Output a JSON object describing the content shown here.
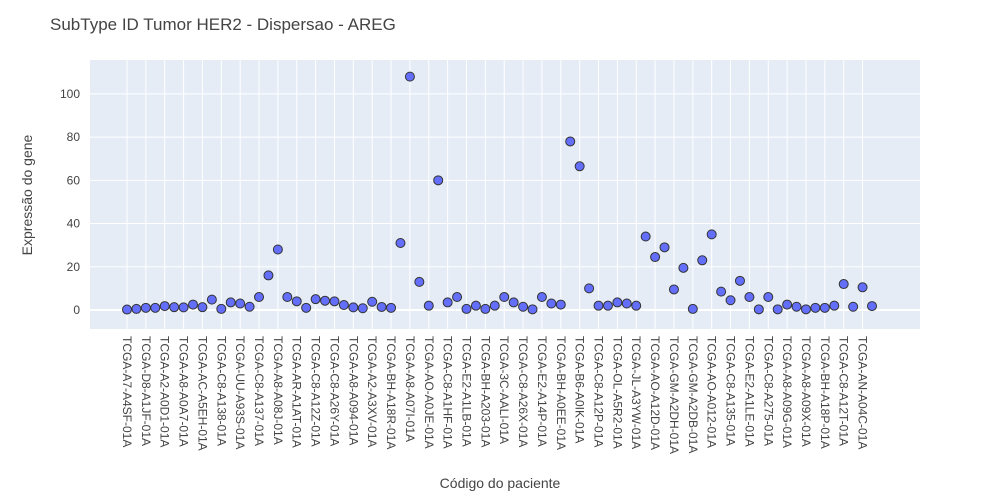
{
  "chart_data": {
    "type": "scatter",
    "title": "SubType ID Tumor HER2 - Dispersao - AREG",
    "x_label": "Código do paciente",
    "y_label": "Expressão do gene",
    "categories": [
      "TCGA-A7-A4SF-01A",
      null,
      "TCGA-D8-A1JF-01A",
      null,
      "TCGA-A2-A0D1-01A",
      null,
      "TCGA-A8-A0A7-01A",
      null,
      "TCGA-AC-A5EH-01A",
      null,
      "TCGA-C8-A138-01A",
      null,
      "TCGA-UU-A93S-01A",
      null,
      "TCGA-C8-A137-01A",
      null,
      "TCGA-A8-A08J-01A",
      null,
      "TCGA-AR-A1AT-01A",
      null,
      "TCGA-C8-A12Z-01A",
      null,
      "TCGA-C8-A26Y-01A",
      null,
      "TCGA-A8-A094-01A",
      null,
      "TCGA-A2-A3XV-01A",
      null,
      "TCGA-BH-A18R-01A",
      null,
      "TCGA-A8-A07I-01A",
      null,
      "TCGA-AO-A0JE-01A",
      null,
      "TCGA-C8-A1HF-01A",
      null,
      "TCGA-E2-A1LB-01A",
      null,
      "TCGA-BH-A203-01A",
      null,
      "TCGA-3C-AALI-01A",
      null,
      "TCGA-C8-A26X-01A",
      null,
      "TCGA-E2-A14P-01A",
      null,
      "TCGA-BH-A0EE-01A",
      null,
      "TCGA-B6-A0IK-01A",
      null,
      "TCGA-C8-A12P-01A",
      null,
      "TCGA-OL-A5R2-01A",
      null,
      "TCGA-JL-A3YW-01A",
      null,
      "TCGA-AO-A12D-01A",
      null,
      "TCGA-GM-A2DH-01A",
      null,
      "TCGA-GM-A2DB-01A",
      null,
      "TCGA-AO-A012-01A",
      null,
      "TCGA-C8-A135-01A",
      null,
      "TCGA-E2-A1LE-01A",
      null,
      "TCGA-C8-A275-01A",
      null,
      "TCGA-A8-A09G-01A",
      null,
      "TCGA-A8-A09X-01A",
      null,
      "TCGA-BH-A18P-01A",
      null,
      "TCGA-C8-A12T-01A",
      null,
      "TCGA-AN-A04C-01A",
      null
    ],
    "values": [
      0.2,
      0.5,
      1,
      1,
      1.8,
      1.3,
      1.2,
      2.5,
      1.3,
      4.8,
      0.5,
      3.5,
      3,
      1.5,
      6,
      16,
      28,
      6,
      4,
      1,
      5,
      4.3,
      4,
      2.3,
      1.2,
      0.8,
      3.8,
      1.4,
      1,
      31,
      108,
      13,
      2,
      60,
      3.5,
      6,
      0.5,
      2,
      0.5,
      2,
      6,
      3.5,
      1.5,
      0.3,
      6,
      3,
      2.5,
      78,
      66.5,
      10,
      2,
      2,
      3.5,
      3,
      2,
      34,
      24.5,
      29,
      9.5,
      19.5,
      0.5,
      23,
      35,
      8.5,
      4.5,
      13.5,
      6,
      0.3,
      6,
      0.3,
      2.5,
      1.5,
      0.3,
      1,
      1,
      2,
      12,
      1.5,
      10.5,
      1.8
    ],
    "color": "#636efa",
    "ylim": [
      -8.8,
      115.7
    ],
    "yticks": [
      0,
      20,
      40,
      60,
      80,
      100
    ],
    "grid": true
  }
}
